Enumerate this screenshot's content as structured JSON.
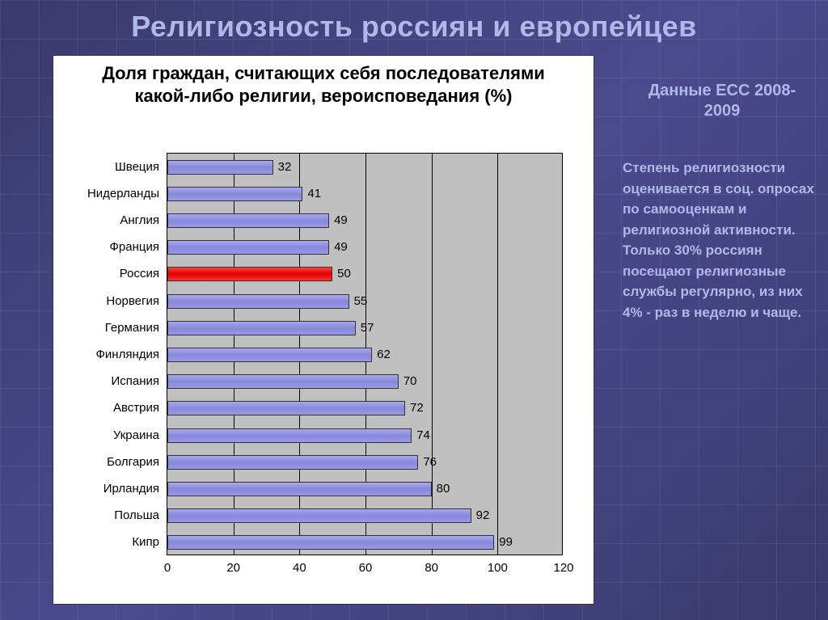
{
  "slide": {
    "title": "Религиозность россиян и европейцев",
    "subtitle": "Данные ЕСС 2008-2009",
    "bodyText": "Степень религиозности оценивается в соц. опросах по самооценкам и религиозной активности. Только 30% россиян посещают религиозные службы регулярно, из них 4%  - раз в неделю и чаще.",
    "title_color": "#b0b8e8",
    "text_color": "#b0b8e8",
    "background_gradient": [
      "#3a3a6e",
      "#4a4a8e",
      "#3a3a6e"
    ]
  },
  "chart": {
    "type": "horizontal_bar",
    "title": "Доля граждан, считающих себя последователями какой-либо религии, вероисповедания (%)",
    "background_color": "#ffffff",
    "plot_background": "#c0c0c0",
    "grid_color": "#000000",
    "default_bar_color": "#9898e8",
    "highlight_bar_color": "#e00000",
    "title_fontsize": 22,
    "label_fontsize": 15,
    "xlim": [
      0,
      120
    ],
    "xtick_step": 20,
    "xticks": [
      0,
      20,
      40,
      60,
      80,
      100,
      120
    ],
    "categories": [
      {
        "label": "Швеция",
        "value": 32,
        "highlight": false
      },
      {
        "label": "Нидерланды",
        "value": 41,
        "highlight": false
      },
      {
        "label": "Англия",
        "value": 49,
        "highlight": false
      },
      {
        "label": "Франция",
        "value": 49,
        "highlight": false
      },
      {
        "label": "Россия",
        "value": 50,
        "highlight": true
      },
      {
        "label": "Норвегия",
        "value": 55,
        "highlight": false
      },
      {
        "label": "Германия",
        "value": 57,
        "highlight": false
      },
      {
        "label": "Финляндия",
        "value": 62,
        "highlight": false
      },
      {
        "label": "Испания",
        "value": 70,
        "highlight": false
      },
      {
        "label": "Австрия",
        "value": 72,
        "highlight": false
      },
      {
        "label": "Украина",
        "value": 74,
        "highlight": false
      },
      {
        "label": "Болгария",
        "value": 76,
        "highlight": false
      },
      {
        "label": "Ирландия",
        "value": 80,
        "highlight": false
      },
      {
        "label": "Польша",
        "value": 92,
        "highlight": false
      },
      {
        "label": "Кипр",
        "value": 99,
        "highlight": false
      }
    ]
  }
}
